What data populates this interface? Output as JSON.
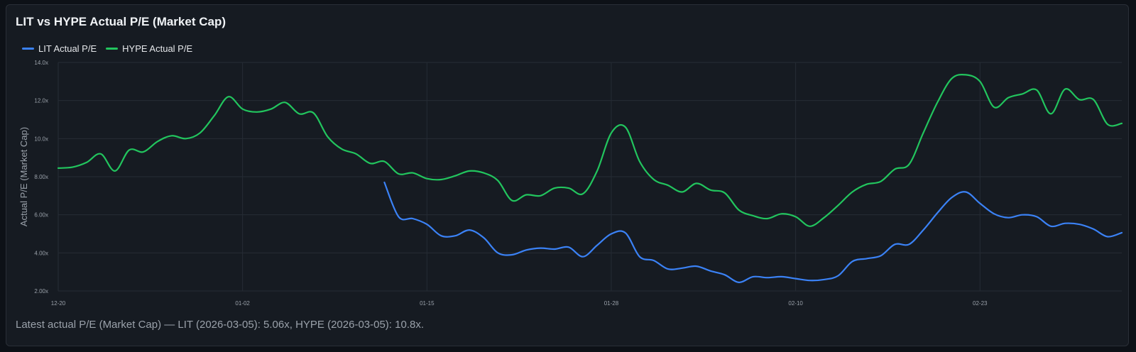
{
  "title": "LIT vs HYPE Actual P/E (Market Cap)",
  "footnote": "Latest actual P/E (Market Cap) — LIT (2026-03-05): 5.06x, HYPE (2026-03-05): 10.8x.",
  "colors": {
    "lit": "#3b82f6",
    "hype": "#22c55e",
    "grid": "#262c35",
    "tick_text": "#9aa1aa"
  },
  "chart_data": {
    "type": "line",
    "title": "LIT vs HYPE Actual P/E (Market Cap)",
    "xlabel": "",
    "ylabel": "Actual P/E (Market Cap)",
    "ylim": [
      2.0,
      14.0
    ],
    "xlim": [
      "2025-12-20",
      "2026-03-05"
    ],
    "y_ticks": [
      2,
      4,
      6,
      8,
      10,
      12,
      14
    ],
    "y_tick_labels": [
      "2.00x",
      "4.00x",
      "6.00x",
      "8.00x",
      "10.0x",
      "12.0x",
      "14.0x"
    ],
    "x_ticks": [
      "2025-12-20",
      "2026-01-02",
      "2026-01-15",
      "2026-01-28",
      "2026-02-10",
      "2026-02-23"
    ],
    "x_tick_labels": [
      "12-20",
      "01-02",
      "01-15",
      "01-28",
      "02-10",
      "02-23"
    ],
    "grid": true,
    "legend": "top-left",
    "series": [
      {
        "name": "LIT Actual P/E",
        "color": "#3b82f6",
        "points": [
          [
            "2026-01-12",
            7.7
          ],
          [
            "2026-01-13",
            5.9
          ],
          [
            "2026-01-14",
            5.8
          ],
          [
            "2026-01-15",
            5.5
          ],
          [
            "2026-01-16",
            4.9
          ],
          [
            "2026-01-17",
            4.9
          ],
          [
            "2026-01-18",
            5.2
          ],
          [
            "2026-01-19",
            4.8
          ],
          [
            "2026-01-20",
            4.0
          ],
          [
            "2026-01-21",
            3.9
          ],
          [
            "2026-01-22",
            4.15
          ],
          [
            "2026-01-23",
            4.25
          ],
          [
            "2026-01-24",
            4.2
          ],
          [
            "2026-01-25",
            4.3
          ],
          [
            "2026-01-26",
            3.8
          ],
          [
            "2026-01-27",
            4.4
          ],
          [
            "2026-01-28",
            5.0
          ],
          [
            "2026-01-29",
            5.05
          ],
          [
            "2026-01-30",
            3.8
          ],
          [
            "2026-01-31",
            3.6
          ],
          [
            "2026-02-01",
            3.15
          ],
          [
            "2026-02-02",
            3.2
          ],
          [
            "2026-02-03",
            3.3
          ],
          [
            "2026-02-04",
            3.05
          ],
          [
            "2026-02-05",
            2.85
          ],
          [
            "2026-02-06",
            2.45
          ],
          [
            "2026-02-07",
            2.75
          ],
          [
            "2026-02-08",
            2.7
          ],
          [
            "2026-02-09",
            2.75
          ],
          [
            "2026-02-10",
            2.65
          ],
          [
            "2026-02-11",
            2.55
          ],
          [
            "2026-02-12",
            2.6
          ],
          [
            "2026-02-13",
            2.8
          ],
          [
            "2026-02-14",
            3.55
          ],
          [
            "2026-02-15",
            3.7
          ],
          [
            "2026-02-16",
            3.85
          ],
          [
            "2026-02-17",
            4.45
          ],
          [
            "2026-02-18",
            4.45
          ],
          [
            "2026-02-19",
            5.2
          ],
          [
            "2026-02-20",
            6.1
          ],
          [
            "2026-02-21",
            6.9
          ],
          [
            "2026-02-22",
            7.2
          ],
          [
            "2026-02-23",
            6.6
          ],
          [
            "2026-02-24",
            6.05
          ],
          [
            "2026-02-25",
            5.85
          ],
          [
            "2026-02-26",
            6.0
          ],
          [
            "2026-02-27",
            5.9
          ],
          [
            "2026-02-28",
            5.4
          ],
          [
            "2026-03-01",
            5.55
          ],
          [
            "2026-03-02",
            5.5
          ],
          [
            "2026-03-03",
            5.25
          ],
          [
            "2026-03-04",
            4.85
          ],
          [
            "2026-03-05",
            5.06
          ]
        ]
      },
      {
        "name": "HYPE Actual P/E",
        "color": "#22c55e",
        "points": [
          [
            "2025-12-20",
            8.45
          ],
          [
            "2025-12-21",
            8.5
          ],
          [
            "2025-12-22",
            8.75
          ],
          [
            "2025-12-23",
            9.2
          ],
          [
            "2025-12-24",
            8.3
          ],
          [
            "2025-12-25",
            9.4
          ],
          [
            "2025-12-26",
            9.3
          ],
          [
            "2025-12-27",
            9.85
          ],
          [
            "2025-12-28",
            10.15
          ],
          [
            "2025-12-29",
            10.0
          ],
          [
            "2025-12-30",
            10.3
          ],
          [
            "2025-12-31",
            11.2
          ],
          [
            "2026-01-01",
            12.2
          ],
          [
            "2026-01-02",
            11.55
          ],
          [
            "2026-01-03",
            11.4
          ],
          [
            "2026-01-04",
            11.55
          ],
          [
            "2026-01-05",
            11.9
          ],
          [
            "2026-01-06",
            11.3
          ],
          [
            "2026-01-07",
            11.35
          ],
          [
            "2026-01-08",
            10.1
          ],
          [
            "2026-01-09",
            9.45
          ],
          [
            "2026-01-10",
            9.2
          ],
          [
            "2026-01-11",
            8.7
          ],
          [
            "2026-01-12",
            8.8
          ],
          [
            "2026-01-13",
            8.15
          ],
          [
            "2026-01-14",
            8.2
          ],
          [
            "2026-01-15",
            7.9
          ],
          [
            "2026-01-16",
            7.85
          ],
          [
            "2026-01-17",
            8.05
          ],
          [
            "2026-01-18",
            8.3
          ],
          [
            "2026-01-19",
            8.2
          ],
          [
            "2026-01-20",
            7.8
          ],
          [
            "2026-01-21",
            6.75
          ],
          [
            "2026-01-22",
            7.05
          ],
          [
            "2026-01-23",
            7.0
          ],
          [
            "2026-01-24",
            7.4
          ],
          [
            "2026-01-25",
            7.4
          ],
          [
            "2026-01-26",
            7.1
          ],
          [
            "2026-01-27",
            8.3
          ],
          [
            "2026-01-28",
            10.3
          ],
          [
            "2026-01-29",
            10.6
          ],
          [
            "2026-01-30",
            8.8
          ],
          [
            "2026-01-31",
            7.85
          ],
          [
            "2026-02-01",
            7.55
          ],
          [
            "2026-02-02",
            7.2
          ],
          [
            "2026-02-03",
            7.65
          ],
          [
            "2026-02-04",
            7.3
          ],
          [
            "2026-02-05",
            7.15
          ],
          [
            "2026-02-06",
            6.25
          ],
          [
            "2026-02-07",
            5.95
          ],
          [
            "2026-02-08",
            5.8
          ],
          [
            "2026-02-09",
            6.05
          ],
          [
            "2026-02-10",
            5.9
          ],
          [
            "2026-02-11",
            5.4
          ],
          [
            "2026-02-12",
            5.85
          ],
          [
            "2026-02-13",
            6.5
          ],
          [
            "2026-02-14",
            7.2
          ],
          [
            "2026-02-15",
            7.6
          ],
          [
            "2026-02-16",
            7.75
          ],
          [
            "2026-02-17",
            8.4
          ],
          [
            "2026-02-18",
            8.65
          ],
          [
            "2026-02-19",
            10.3
          ],
          [
            "2026-02-20",
            11.9
          ],
          [
            "2026-02-21",
            13.15
          ],
          [
            "2026-02-22",
            13.35
          ],
          [
            "2026-02-23",
            13.0
          ],
          [
            "2026-02-24",
            11.65
          ],
          [
            "2026-02-25",
            12.15
          ],
          [
            "2026-02-26",
            12.35
          ],
          [
            "2026-02-27",
            12.55
          ],
          [
            "2026-02-28",
            11.3
          ],
          [
            "2026-03-01",
            12.6
          ],
          [
            "2026-03-02",
            12.05
          ],
          [
            "2026-03-03",
            12.05
          ],
          [
            "2026-03-04",
            10.75
          ],
          [
            "2026-03-05",
            10.8
          ]
        ]
      }
    ]
  }
}
